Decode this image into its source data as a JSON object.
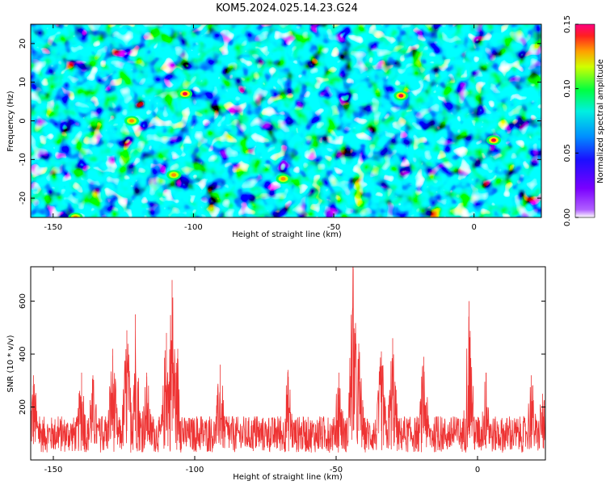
{
  "title": "KOM5.2024.025.14.23.G24",
  "chart_data": [
    {
      "type": "heatmap",
      "xlabel": "Height of straight line (km)",
      "ylabel": "Frequency (Hz)",
      "xlim": [
        -158,
        24
      ],
      "ylim": [
        -25,
        25
      ],
      "x_ticks": [
        -150,
        -100,
        -50,
        0
      ],
      "y_ticks": [
        -20,
        -10,
        0,
        10,
        20
      ],
      "colorbar": {
        "label": "Normalized spectral amplitude",
        "range": [
          0,
          0.15
        ],
        "ticks": [
          "0.00",
          "0.05",
          "0.10",
          "0.15"
        ],
        "colors": [
          "#ffffff",
          "#8a00ff",
          "#2a00ff",
          "#0090ff",
          "#00f0ff",
          "#00ff60",
          "#ffff00",
          "#ff8000",
          "#ff0080"
        ]
      },
      "hotspots": [
        {
          "x": -26,
          "y": 6.5,
          "value": 0.15
        },
        {
          "x": 7,
          "y": -5,
          "value": 0.14
        },
        {
          "x": -103,
          "y": 7,
          "value": 0.12
        },
        {
          "x": -142,
          "y": -25,
          "value": 0.1
        },
        {
          "x": -122,
          "y": 0,
          "value": 0.09
        },
        {
          "x": -107,
          "y": -14,
          "value": 0.09
        },
        {
          "x": -68,
          "y": -15,
          "value": 0.09
        }
      ]
    },
    {
      "type": "line",
      "xlabel": "Height of straight line (km)",
      "ylabel": "SNR (10 * v/v)",
      "xlim": [
        -158,
        24
      ],
      "ylim": [
        0,
        730
      ],
      "x_ticks": [
        -150,
        -100,
        -50,
        0
      ],
      "y_ticks": [
        200,
        400,
        600
      ],
      "series": [
        {
          "color": "#ee3333",
          "baseline": 110,
          "noise": 90,
          "peaks": [
            {
              "x": -157,
              "y": 320
            },
            {
              "x": -140,
              "y": 330
            },
            {
              "x": -136,
              "y": 320
            },
            {
              "x": -129,
              "y": 420
            },
            {
              "x": -124,
              "y": 490
            },
            {
              "x": -121,
              "y": 550
            },
            {
              "x": -117,
              "y": 330
            },
            {
              "x": -110,
              "y": 480
            },
            {
              "x": -108,
              "y": 680
            },
            {
              "x": -106,
              "y": 420
            },
            {
              "x": -91,
              "y": 360
            },
            {
              "x": -67,
              "y": 340
            },
            {
              "x": -49,
              "y": 330
            },
            {
              "x": -44,
              "y": 730
            },
            {
              "x": -42,
              "y": 440
            },
            {
              "x": -34,
              "y": 410
            },
            {
              "x": -30,
              "y": 460
            },
            {
              "x": -19,
              "y": 390
            },
            {
              "x": -3,
              "y": 600
            },
            {
              "x": 3,
              "y": 330
            },
            {
              "x": 19,
              "y": 320
            },
            {
              "x": 23,
              "y": 250
            }
          ]
        }
      ]
    }
  ]
}
